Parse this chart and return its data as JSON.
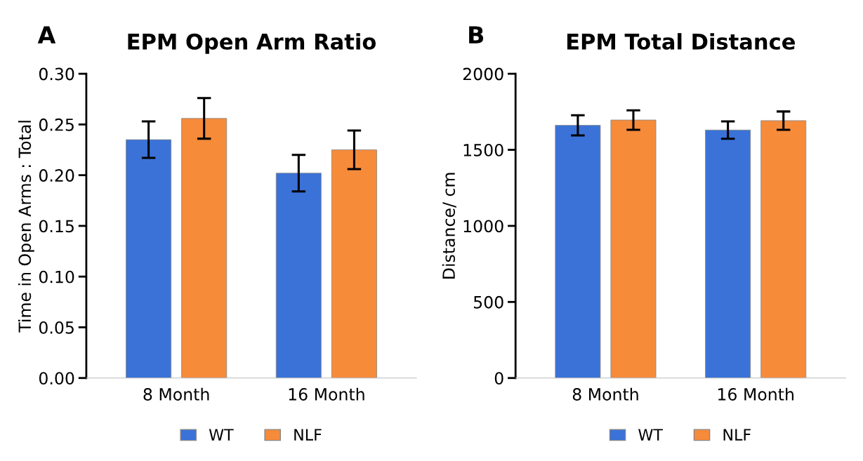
{
  "chart_data": [
    {
      "type": "bar",
      "title": "EPM Open Arm Ratio",
      "ylabel": "Time in Open Arms : Total",
      "annotations": [
        "A"
      ],
      "categories": [
        "8 Month",
        "16 Month"
      ],
      "series": [
        {
          "name": "WT",
          "color": "#3a72d8",
          "values": [
            0.235,
            0.202
          ],
          "errors": [
            0.018,
            0.018
          ]
        },
        {
          "name": "NLF",
          "color": "#f68b3a",
          "values": [
            0.256,
            0.225
          ],
          "errors": [
            0.02,
            0.019
          ]
        }
      ],
      "ylim": [
        0,
        0.3
      ],
      "yticks": [
        {
          "value": 0,
          "label": "0.00"
        },
        {
          "value": 0.05,
          "label": "0.05"
        },
        {
          "value": 0.1,
          "label": "0.10"
        },
        {
          "value": 0.15,
          "label": "0.15"
        },
        {
          "value": 0.2,
          "label": "0.20"
        },
        {
          "value": 0.25,
          "label": "0.25"
        },
        {
          "value": 0.3,
          "label": "0.30"
        }
      ],
      "grid": false,
      "legend": "bottom"
    },
    {
      "type": "bar",
      "title": "EPM Total Distance",
      "ylabel": "Distance/ cm",
      "annotations": [
        "B"
      ],
      "categories": [
        "8 Month",
        "16 Month"
      ],
      "series": [
        {
          "name": "WT",
          "color": "#3a72d8",
          "values": [
            1661,
            1630
          ],
          "errors": [
            66,
            57
          ]
        },
        {
          "name": "NLF",
          "color": "#f68b3a",
          "values": [
            1696,
            1692
          ],
          "errors": [
            64,
            60
          ]
        }
      ],
      "ylim": [
        0,
        2000
      ],
      "yticks": [
        0,
        500,
        1000,
        1500,
        2000
      ],
      "grid": false,
      "legend": "bottom"
    }
  ]
}
